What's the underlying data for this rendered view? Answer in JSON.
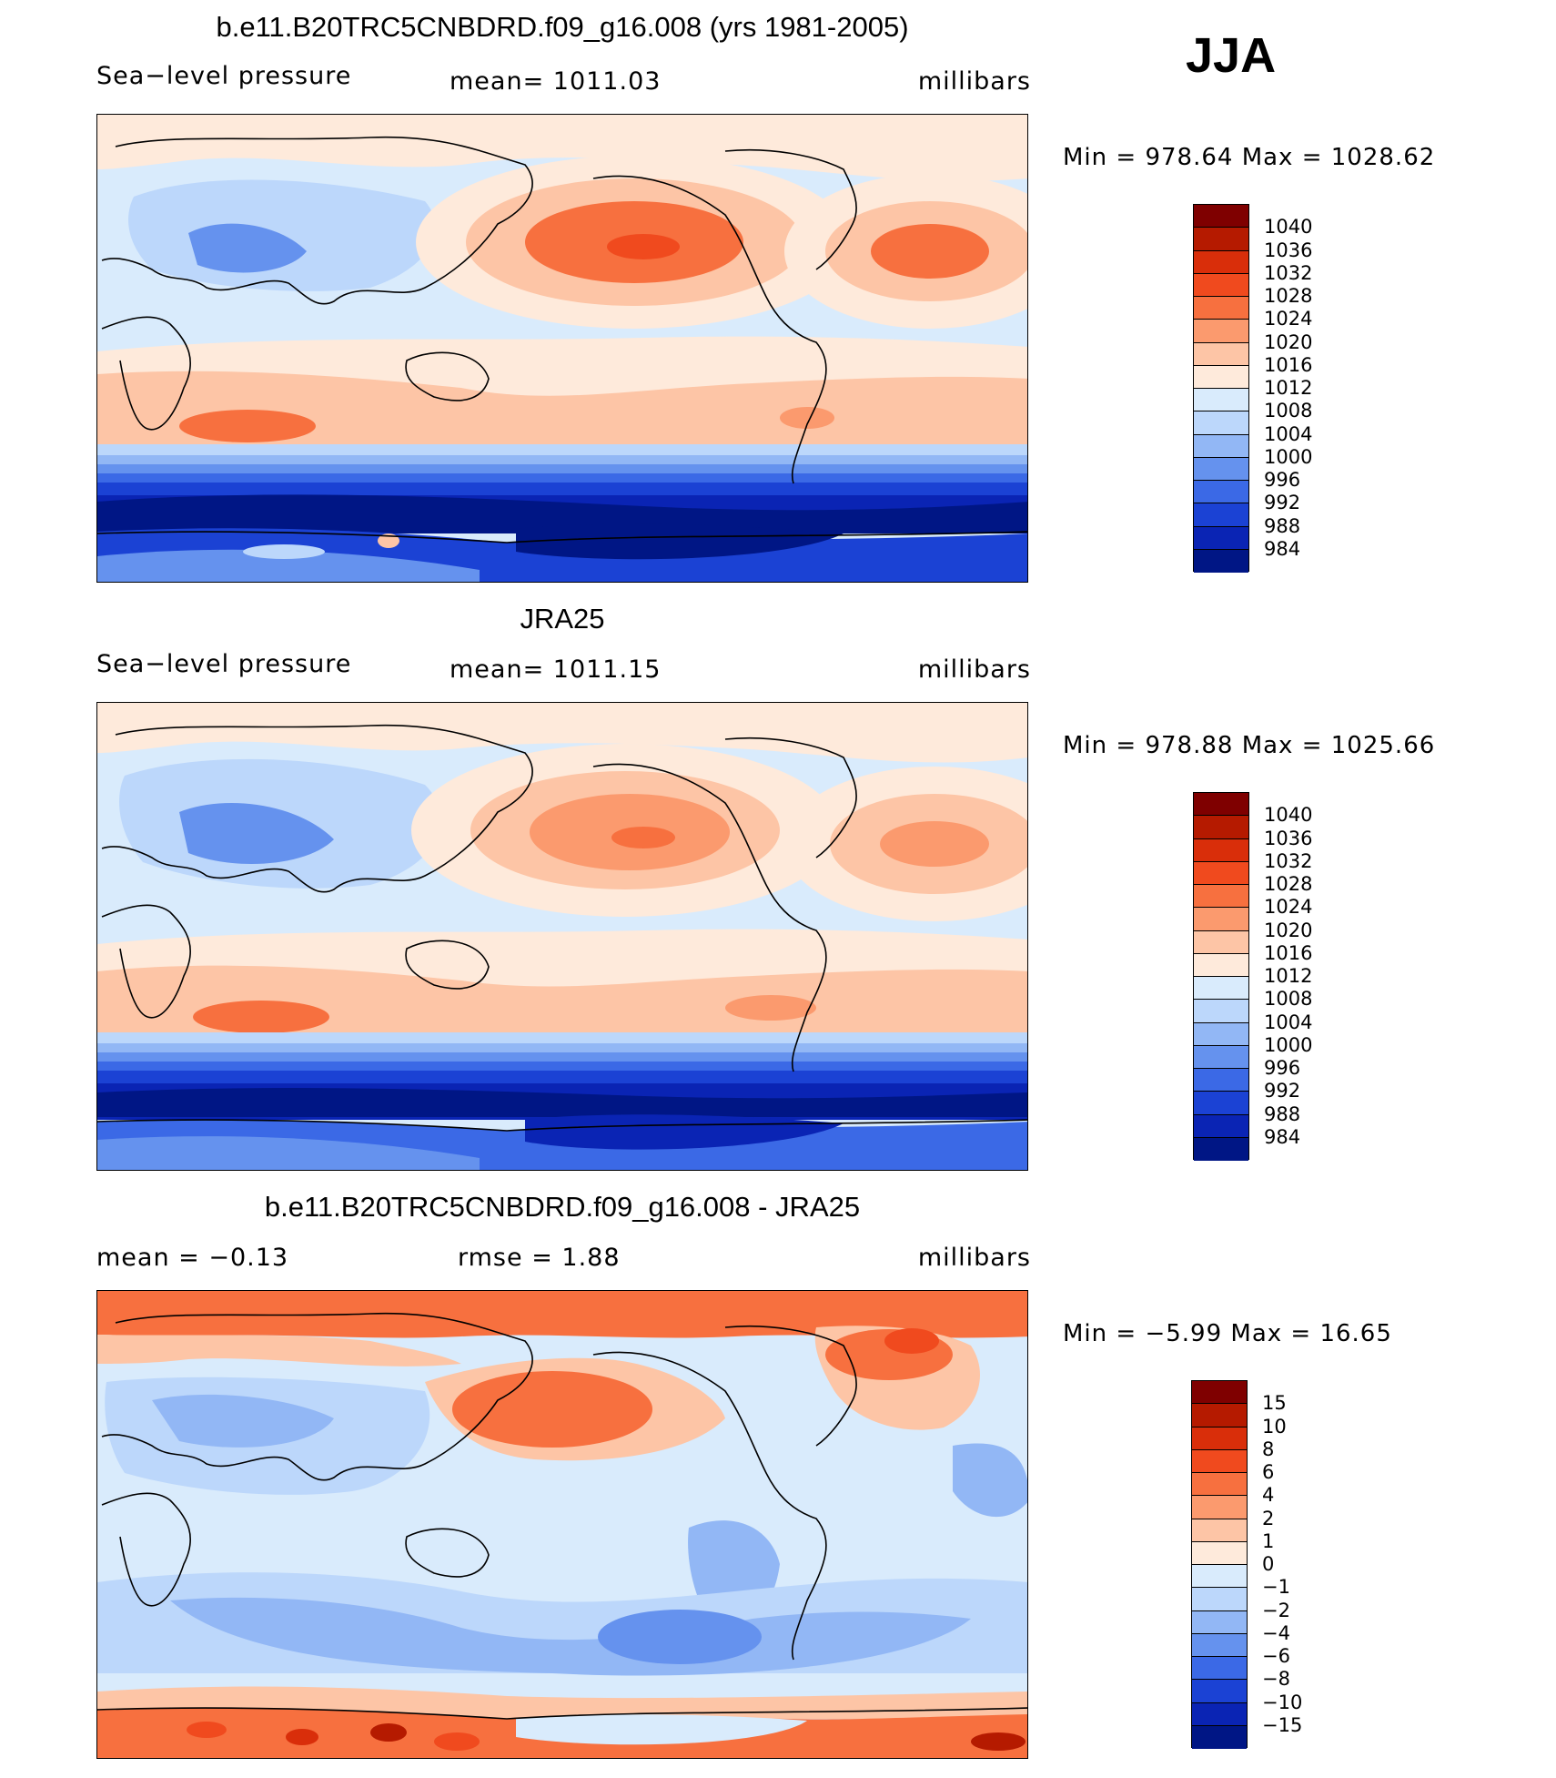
{
  "season": "JJA",
  "panels": [
    {
      "title": "b.e11.B20TRC5CNBDRD.f09_g16.008 (yrs 1981-2005)",
      "left": "Sea−level pressure",
      "center": "mean=  1011.03",
      "right": "millibars",
      "minmax": "Min  =  978.64  Max  =  1028.62"
    },
    {
      "title": "JRA25",
      "left": "Sea−level pressure",
      "center": "mean=  1011.15",
      "right": "millibars",
      "minmax": "Min  =  978.88  Max  =  1025.66"
    },
    {
      "title": "b.e11.B20TRC5CNBDRD.f09_g16.008 - JRA25",
      "left": "mean  =    −0.13",
      "center": "rmse  =     1.88",
      "right": "millibars",
      "minmax": "Min  =    −5.99  Max  =    16.65"
    }
  ],
  "colorbars": {
    "field_levels": [
      "1040",
      "1036",
      "1032",
      "1028",
      "1024",
      "1020",
      "1016",
      "1012",
      "1008",
      "1004",
      "1000",
      "996",
      "992",
      "988",
      "984"
    ],
    "diff_levels": [
      "15",
      "10",
      "8",
      "6",
      "4",
      "2",
      "1",
      "0",
      "−1",
      "−2",
      "−4",
      "−6",
      "−8",
      "−10",
      "−15"
    ],
    "colors": [
      "#7f0000",
      "#b51a00",
      "#d92e0a",
      "#f04a1e",
      "#f7703f",
      "#fb9a6e",
      "#fdc5a6",
      "#feeadb",
      "#d9ebfc",
      "#bcd7fb",
      "#92b7f5",
      "#6592ee",
      "#3b69e6",
      "#1b42d4",
      "#0a24b4",
      "#001685"
    ]
  }
}
